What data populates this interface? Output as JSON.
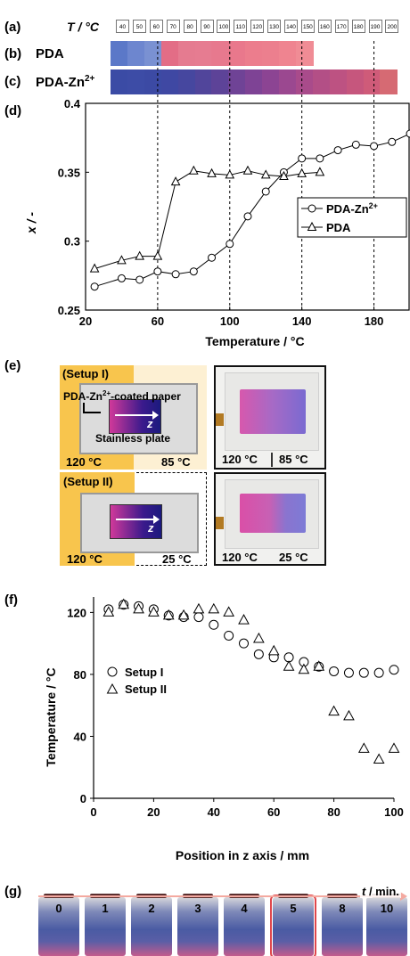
{
  "labels": {
    "a": "(a)",
    "b": "(b)",
    "c": "(c)",
    "d": "(d)",
    "e": "(e)",
    "f": "(f)",
    "g": "(g)"
  },
  "temp_row": {
    "title": "T / °C",
    "values": [
      "40",
      "50",
      "60",
      "70",
      "80",
      "90",
      "100",
      "110",
      "120",
      "130",
      "140",
      "150",
      "160",
      "170",
      "180",
      "190",
      "200"
    ]
  },
  "strips": {
    "pda": {
      "label": "PDA",
      "colors": [
        "#5b78c8",
        "#6d86cf",
        "#7a91d2",
        "#e36d86",
        "#e57b90",
        "#e67c91",
        "#e7798e",
        "#e9788c",
        "#ec7d8d",
        "#ec7f8e",
        "#ef8490",
        "#f08c95"
      ]
    },
    "pda_zn": {
      "label": "PDA-Zn2+",
      "colors": [
        "#3b4ba5",
        "#3d4ca6",
        "#3c4aa4",
        "#3f48a3",
        "#46479f",
        "#51459b",
        "#5d4398",
        "#6f4396",
        "#7e4395",
        "#8c4493",
        "#9b4890",
        "#a94b8b",
        "#b34f86",
        "#bd5282",
        "#c6567d",
        "#cf5b79",
        "#d66a73"
      ]
    }
  },
  "chart_d": {
    "type": "scatter",
    "ylabel": "x / -",
    "xlabel": "Temperature / °C",
    "xlim": [
      20,
      200
    ],
    "ylim": [
      0.25,
      0.4
    ],
    "xticks": [
      20,
      60,
      100,
      140,
      180
    ],
    "yticks": [
      0.25,
      0.3,
      0.35,
      0.4
    ],
    "ytick_labels": [
      "0.25",
      "0.3",
      "0.35",
      "0.4"
    ],
    "vlines": [
      60,
      100,
      140,
      180
    ],
    "legend": [
      "PDA-Zn2+",
      "PDA"
    ],
    "chart_data": {
      "type": "scatter",
      "series": [
        {
          "name": "PDA-Zn2+",
          "marker": "circle",
          "x": [
            25,
            40,
            50,
            60,
            70,
            80,
            90,
            100,
            110,
            120,
            130,
            140,
            150,
            160,
            170,
            180,
            190,
            200
          ],
          "y": [
            0.267,
            0.273,
            0.272,
            0.278,
            0.276,
            0.278,
            0.288,
            0.298,
            0.318,
            0.336,
            0.35,
            0.36,
            0.36,
            0.366,
            0.37,
            0.369,
            0.372,
            0.378
          ]
        },
        {
          "name": "PDA",
          "marker": "triangle",
          "x": [
            25,
            40,
            50,
            60,
            70,
            80,
            90,
            100,
            110,
            120,
            130,
            140,
            150
          ],
          "y": [
            0.28,
            0.286,
            0.289,
            0.289,
            0.343,
            0.351,
            0.349,
            0.348,
            0.351,
            0.348,
            0.347,
            0.349,
            0.35
          ]
        }
      ]
    }
  },
  "setup": {
    "setup1_title": "(Setup I)",
    "setup1_paper": "PDA-Zn2+-coated paper",
    "setup1_plate": "Stainless plate",
    "z_label": "z",
    "setup1_hot": "120 °C",
    "setup1_cold": "85 °C",
    "setup2_title": "(Setup II)",
    "setup2_hot": "120 °C",
    "setup2_cold": "25 °C",
    "photo1_hot": "120 °C",
    "photo1_cold": "85 °C",
    "photo2_hot": "120 °C",
    "photo2_cold": "25 °C",
    "hot_color": "#f8c54d",
    "warm_color": "#fdf0d3"
  },
  "chart_f": {
    "type": "scatter",
    "ylabel": "Temperature / °C",
    "xlabel": "Position in z axis / mm",
    "xlim": [
      0,
      100
    ],
    "ylim": [
      0,
      130
    ],
    "xticks": [
      0,
      20,
      40,
      60,
      80,
      100
    ],
    "yticks": [
      0,
      40,
      80,
      120
    ],
    "legend": [
      "Setup I",
      "Setup II"
    ],
    "chart_data": {
      "type": "scatter",
      "series": [
        {
          "name": "Setup I",
          "marker": "circle",
          "x": [
            5,
            10,
            15,
            20,
            25,
            30,
            35,
            40,
            45,
            50,
            55,
            60,
            65,
            70,
            75,
            80,
            85,
            90,
            95,
            100
          ],
          "y": [
            122,
            125,
            124,
            122,
            118,
            117,
            117,
            112,
            105,
            100,
            93,
            91,
            91,
            88,
            85,
            82,
            81,
            81,
            81,
            83
          ]
        },
        {
          "name": "Setup II",
          "marker": "triangle",
          "x": [
            5,
            10,
            15,
            20,
            25,
            30,
            35,
            40,
            45,
            50,
            55,
            60,
            65,
            70,
            75,
            80,
            85,
            90,
            95,
            100
          ],
          "y": [
            120,
            125,
            122,
            120,
            118,
            118,
            122,
            122,
            120,
            115,
            103,
            95,
            85,
            83,
            85,
            56,
            53,
            32,
            25,
            32
          ]
        }
      ]
    }
  },
  "vials": {
    "time_label": "t / min.",
    "times": [
      "0",
      "1",
      "2",
      "3",
      "4",
      "5",
      "8",
      "10"
    ],
    "highlight_index": 5
  }
}
